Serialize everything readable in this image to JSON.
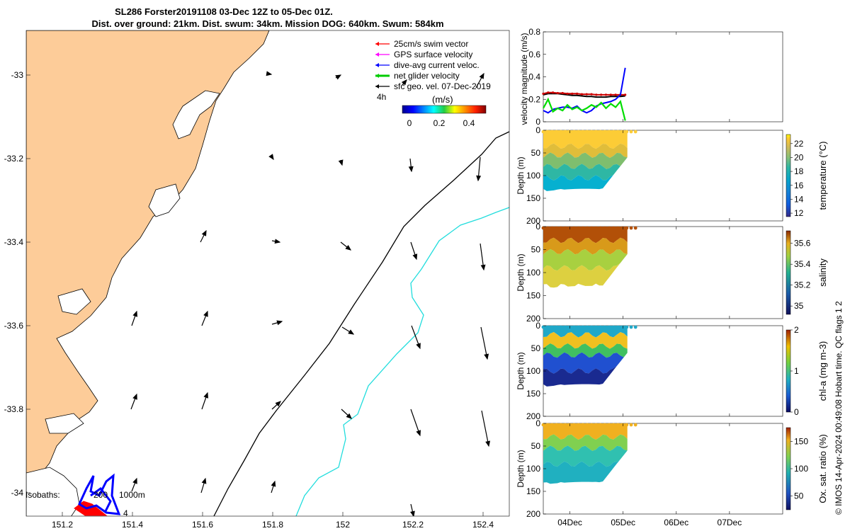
{
  "title": {
    "line1": "SL286 Forster20191108 03-Dec 12Z to 05-Dec 01Z.",
    "line2": "Dist. over ground: 21km. Dist. swum: 34km. Mission DOG: 640km. Swum: 584km"
  },
  "map": {
    "legend": [
      {
        "label": "25cm/s swim vector",
        "color": "#ff0000"
      },
      {
        "label": "GPS surface velocity",
        "color": "#ff00ff"
      },
      {
        "label": "dive-avg current veloc.",
        "color": "#0000ff"
      },
      {
        "label": "net glider velocity",
        "color": "#00cc00"
      },
      {
        "label": "sfc geo. vel. 07-Dec-2019",
        "color": "#000000"
      }
    ],
    "time_marker": "4h",
    "colorbar_unit": "(m/s)",
    "colorbar_ticks": [
      "0",
      "0.2",
      "0.4"
    ],
    "xticks": [
      "151.2",
      "151.4",
      "151.6",
      "151.8",
      "152",
      "152.2",
      "152.4"
    ],
    "yticks": [
      "-33",
      "-33.2",
      "-33.4",
      "-33.6",
      "-33.8",
      "-34"
    ],
    "isobath_label": "Isobaths: ",
    "isobath_values": [
      "200",
      "1000m"
    ],
    "stray_label": "4",
    "land_color": "#fdcc99"
  },
  "chart_data": [
    {
      "type": "line",
      "panel": "velocity",
      "ylabel": "velocity magnitude (m/s)",
      "ylim": [
        0,
        0.8
      ],
      "yticks": [
        "0",
        "0.2",
        "0.4",
        "0.6",
        "0.8"
      ],
      "x_start_day": 3.5,
      "x_end_day": 5.04,
      "series": [
        {
          "color": "#000000",
          "values": [
            0.24,
            0.25,
            0.25,
            0.25,
            0.245,
            0.24,
            0.235,
            0.235,
            0.23,
            0.225,
            0.225,
            0.22,
            0.22,
            0.22,
            0.225,
            0.225,
            0.225,
            0.23
          ]
        },
        {
          "color": "#cc0000",
          "values": [
            0.25,
            0.26,
            0.26,
            0.255,
            0.255,
            0.25,
            0.25,
            0.25,
            0.245,
            0.245,
            0.245,
            0.24,
            0.24,
            0.24,
            0.24,
            0.24,
            0.24,
            0.24
          ]
        },
        {
          "color": "#0000ff",
          "values": [
            0.1,
            0.08,
            0.11,
            0.12,
            0.13,
            0.13,
            0.12,
            0.14,
            0.1,
            0.08,
            0.1,
            0.14,
            0.16,
            0.17,
            0.18,
            0.2,
            0.24,
            0.48
          ]
        },
        {
          "color": "#00dd00",
          "values": [
            0.12,
            0.2,
            0.09,
            0.12,
            0.1,
            0.15,
            0.11,
            0.13,
            0.1,
            0.12,
            0.15,
            0.13,
            0.17,
            0.12,
            0.16,
            0.13,
            0.18,
            0.01
          ]
        }
      ]
    },
    {
      "type": "heatmap",
      "panel": "temperature",
      "ylabel": "Depth (m)",
      "clabel": "temperature (°C)",
      "ylim": [
        200,
        0
      ],
      "yticks": [
        "0",
        "50",
        "100",
        "150",
        "200"
      ],
      "cticks": [
        "12",
        "14",
        "16",
        "18",
        "20",
        "22"
      ],
      "crange": [
        11.5,
        23.3
      ]
    },
    {
      "type": "heatmap",
      "panel": "salinity",
      "ylabel": "Depth (m)",
      "clabel": "salinity",
      "ylim": [
        200,
        0
      ],
      "yticks": [
        "0",
        "50",
        "100",
        "150",
        "200"
      ],
      "cticks": [
        "35",
        "35.2",
        "35.4",
        "35.6"
      ],
      "crange": [
        34.92,
        35.72
      ]
    },
    {
      "type": "heatmap",
      "panel": "chl-a",
      "ylabel": "Depth (m)",
      "clabel": "chl-a (mg m-3)",
      "ylim": [
        200,
        0
      ],
      "yticks": [
        "0",
        "50",
        "100",
        "150",
        "200"
      ],
      "cticks": [
        "0",
        "1",
        "2"
      ],
      "crange": [
        0,
        2
      ]
    },
    {
      "type": "heatmap",
      "panel": "oxygen",
      "ylabel": "Depth (m)",
      "clabel": "Ox. sat. ratio (%)",
      "ylim": [
        200,
        0
      ],
      "yticks": [
        "0",
        "50",
        "100",
        "150",
        "200"
      ],
      "cticks": [
        "50",
        "100",
        "150"
      ],
      "crange": [
        25,
        175
      ]
    }
  ],
  "time_axis": {
    "ticks": [
      "04Dec",
      "05Dec",
      "06Dec",
      "07Dec"
    ],
    "range_days": [
      3.5,
      8.0
    ]
  },
  "credit": "© IMOS 14-Apr-2024 00:49:08 Hobart time. QC flags 1  2"
}
